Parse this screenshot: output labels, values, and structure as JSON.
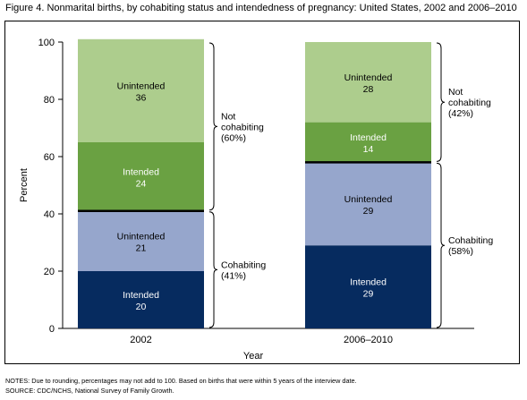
{
  "title": "Figure 4. Nonmarital births, by cohabiting status and intendedness of pregnancy: United States, 2002 and 2006–2010",
  "notes": [
    "NOTES: Due to rounding, percentages may not add to 100. Based on births that were within 5 years of the interview date.",
    "SOURCE: CDC/NCHS, National Survey of Family Growth."
  ],
  "chart_data": {
    "type": "bar",
    "stacked": true,
    "categories": [
      "2002",
      "2006–2010"
    ],
    "xlabel": "Year",
    "ylabel": "Percent",
    "ylim": [
      0,
      100
    ],
    "yticks": [
      0,
      20,
      40,
      60,
      80,
      100
    ],
    "grid": false,
    "series": [
      {
        "group": "Cohabiting",
        "label": "Intended",
        "values": [
          20,
          29
        ],
        "color": "#062b5f"
      },
      {
        "group": "Cohabiting",
        "label": "Unintended",
        "values": [
          21,
          29
        ],
        "color": "#96a6cc"
      },
      {
        "group": "Not cohabiting",
        "label": "Intended",
        "values": [
          24,
          14
        ],
        "color": "#6aa142"
      },
      {
        "group": "Not cohabiting",
        "label": "Unintended",
        "values": [
          36,
          28
        ],
        "color": "#adcd8d"
      }
    ],
    "brackets": [
      {
        "category": "2002",
        "from": 0,
        "to": 41,
        "lines": [
          "Cohabiting",
          "(41%)"
        ]
      },
      {
        "category": "2002",
        "from": 41,
        "to": 100,
        "lines": [
          "Not",
          "cohabiting",
          "(60%)"
        ]
      },
      {
        "category": "2006–2010",
        "from": 0,
        "to": 58,
        "lines": [
          "Cohabiting",
          "(58%)"
        ]
      },
      {
        "category": "2006–2010",
        "from": 58,
        "to": 100,
        "lines": [
          "Not",
          "cohabiting",
          "(42%)"
        ]
      }
    ]
  }
}
